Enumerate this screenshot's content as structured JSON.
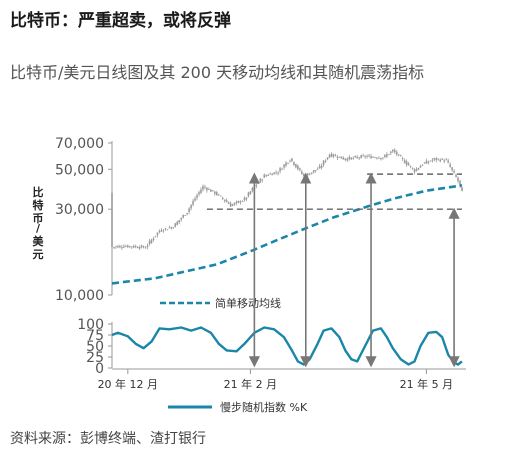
{
  "headline": "比特币：严重超卖，或将反弹",
  "subtitle": "比特币/美元日线图及其 200 天移动均线和其随机震荡指标",
  "source": "资料来源：彭博终端、渣打银行",
  "colors": {
    "candle": "#9a9a9a",
    "ma": "#1a86a8",
    "stoch": "#1a86a8",
    "dashed": "#666666",
    "arrow": "#777777"
  },
  "chart_data": [
    {
      "type": "candlestick",
      "title": "",
      "ylabel": "比特币/美元",
      "yscale": "log",
      "ylim": [
        10000,
        70000
      ],
      "yticks": [
        {
          "value": 10000,
          "label": "10,000"
        },
        {
          "value": 30000,
          "label": "30,000"
        },
        {
          "value": 50000,
          "label": "50,000"
        },
        {
          "value": 70000,
          "label": "70,000"
        }
      ],
      "xticks": [
        {
          "date": "2020-12-01",
          "label": "20 年 12 月"
        },
        {
          "date": "2021-02-01",
          "label": "21 年 2 月"
        },
        {
          "date": "2021-05-01",
          "label": "21 年 5 月"
        }
      ],
      "price_path": [
        [
          "2020-11-23",
          18500
        ],
        [
          "2020-12-01",
          18700
        ],
        [
          "2020-12-10",
          18400
        ],
        [
          "2020-12-17",
          22800
        ],
        [
          "2020-12-24",
          24000
        ],
        [
          "2020-12-31",
          29000
        ],
        [
          "2021-01-08",
          40000
        ],
        [
          "2021-01-14",
          37000
        ],
        [
          "2021-01-22",
          31500
        ],
        [
          "2021-01-29",
          34000
        ],
        [
          "2021-02-08",
          46000
        ],
        [
          "2021-02-15",
          48500
        ],
        [
          "2021-02-21",
          57000
        ],
        [
          "2021-02-28",
          45500
        ],
        [
          "2021-03-08",
          51000
        ],
        [
          "2021-03-13",
          60500
        ],
        [
          "2021-03-21",
          57000
        ],
        [
          "2021-03-31",
          59000
        ],
        [
          "2021-04-09",
          58000
        ],
        [
          "2021-04-14",
          63500
        ],
        [
          "2021-04-20",
          55000
        ],
        [
          "2021-04-25",
          49000
        ],
        [
          "2021-04-29",
          53500
        ],
        [
          "2021-05-05",
          57000
        ],
        [
          "2021-05-11",
          56000
        ],
        [
          "2021-05-14",
          49000
        ],
        [
          "2021-05-17",
          43000
        ],
        [
          "2021-05-19",
          37000
        ]
      ],
      "moving_average": {
        "name": "简单移动均线",
        "points": [
          [
            "2020-11-23",
            11600
          ],
          [
            "2020-12-15",
            12400
          ],
          [
            "2021-01-15",
            14800
          ],
          [
            "2021-02-01",
            17500
          ],
          [
            "2021-02-15",
            20300
          ],
          [
            "2021-03-01",
            23500
          ],
          [
            "2021-03-15",
            27000
          ],
          [
            "2021-04-01",
            31000
          ],
          [
            "2021-04-15",
            34500
          ],
          [
            "2021-05-01",
            38000
          ],
          [
            "2021-05-19",
            40700
          ]
        ]
      },
      "reference_lines": [
        {
          "value": 30000,
          "from": "2021-01-10",
          "to": "2021-05-19"
        },
        {
          "value": 47000,
          "from": "2021-04-01",
          "to": "2021-05-19"
        }
      ]
    },
    {
      "type": "line",
      "ylim": [
        0,
        100
      ],
      "yticks": [
        {
          "value": 0,
          "label": "0"
        },
        {
          "value": 25,
          "label": "25"
        },
        {
          "value": 50,
          "label": "50"
        },
        {
          "value": 75,
          "label": "75"
        },
        {
          "value": 100,
          "label": "100"
        }
      ],
      "series": [
        {
          "name": "慢步随机指数 %K",
          "points": [
            [
              "2020-11-23",
              75
            ],
            [
              "2020-11-26",
              80
            ],
            [
              "2020-12-01",
              72
            ],
            [
              "2020-12-05",
              55
            ],
            [
              "2020-12-09",
              45
            ],
            [
              "2020-12-13",
              60
            ],
            [
              "2020-12-17",
              90
            ],
            [
              "2020-12-22",
              88
            ],
            [
              "2020-12-28",
              92
            ],
            [
              "2021-01-02",
              85
            ],
            [
              "2021-01-07",
              92
            ],
            [
              "2021-01-12",
              80
            ],
            [
              "2021-01-16",
              55
            ],
            [
              "2021-01-20",
              40
            ],
            [
              "2021-01-25",
              38
            ],
            [
              "2021-01-29",
              55
            ],
            [
              "2021-02-03",
              80
            ],
            [
              "2021-02-08",
              92
            ],
            [
              "2021-02-13",
              88
            ],
            [
              "2021-02-18",
              70
            ],
            [
              "2021-02-22",
              40
            ],
            [
              "2021-02-25",
              15
            ],
            [
              "2021-02-28",
              8
            ],
            [
              "2021-03-03",
              20
            ],
            [
              "2021-03-07",
              55
            ],
            [
              "2021-03-10",
              85
            ],
            [
              "2021-03-14",
              90
            ],
            [
              "2021-03-18",
              70
            ],
            [
              "2021-03-21",
              40
            ],
            [
              "2021-03-24",
              20
            ],
            [
              "2021-03-27",
              15
            ],
            [
              "2021-03-31",
              50
            ],
            [
              "2021-04-04",
              85
            ],
            [
              "2021-04-08",
              90
            ],
            [
              "2021-04-11",
              70
            ],
            [
              "2021-04-14",
              45
            ],
            [
              "2021-04-18",
              20
            ],
            [
              "2021-04-22",
              8
            ],
            [
              "2021-04-25",
              15
            ],
            [
              "2021-04-28",
              50
            ],
            [
              "2021-05-02",
              80
            ],
            [
              "2021-05-06",
              82
            ],
            [
              "2021-05-09",
              70
            ],
            [
              "2021-05-12",
              30
            ],
            [
              "2021-05-15",
              12
            ],
            [
              "2021-05-17",
              8
            ],
            [
              "2021-05-19",
              15
            ]
          ]
        }
      ]
    }
  ],
  "arrows": [
    {
      "date": "2021-02-03",
      "from_price": 47000,
      "to_k": 5
    },
    {
      "date": "2021-03-01",
      "from_price": 47000,
      "to_k": 5
    },
    {
      "date": "2021-04-03",
      "from_price": 47000,
      "to_k": 5
    },
    {
      "date": "2021-05-15",
      "from_price": 30000,
      "to_k": 5
    }
  ]
}
